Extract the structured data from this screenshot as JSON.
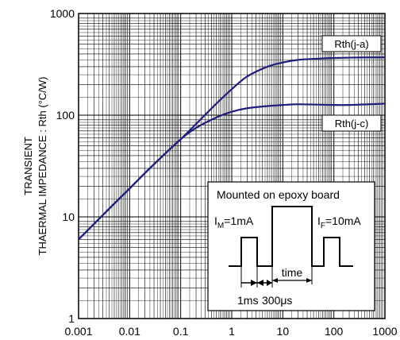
{
  "chart_data": {
    "type": "line",
    "xscale": "log",
    "yscale": "log",
    "xlim": [
      0.001,
      1000
    ],
    "ylim": [
      1,
      1000
    ],
    "grid": true,
    "ylabel_line1": "TRANSIENT",
    "ylabel_line2": "THAERMAL IMPEDANCE : Rth (°C/W)",
    "xticks": [
      "0.001",
      "0.01",
      "0.1",
      "1",
      "10",
      "100",
      "1000"
    ],
    "yticks": [
      "1",
      "10",
      "100",
      "1000"
    ],
    "series": [
      {
        "name": "Rth(j-a)",
        "x": [
          0.001,
          0.002,
          0.005,
          0.01,
          0.02,
          0.05,
          0.1,
          0.2,
          0.5,
          1,
          2,
          5,
          10,
          20,
          50,
          100,
          200,
          500,
          1000
        ],
        "y": [
          6,
          8.5,
          13.5,
          19,
          27,
          42,
          58,
          82,
          130,
          180,
          240,
          300,
          330,
          350,
          360,
          365,
          368,
          370,
          370
        ]
      },
      {
        "name": "Rth(j-c)",
        "x": [
          0.001,
          0.002,
          0.005,
          0.01,
          0.02,
          0.05,
          0.1,
          0.2,
          0.5,
          1,
          2,
          5,
          10,
          20,
          50,
          100,
          200,
          500,
          1000
        ],
        "y": [
          6,
          8.5,
          13.5,
          19,
          27,
          42,
          58,
          75,
          95,
          108,
          117,
          123,
          126,
          128,
          127,
          126,
          126,
          128,
          130
        ]
      }
    ],
    "inset": {
      "title": "Mounted on epoxy board",
      "im_label": "I",
      "im_sub": "M",
      "im_value": "=1mA",
      "if_label": "I",
      "if_sub": "F",
      "if_value": "=10mA",
      "time_label": "time",
      "dim1_label": "1ms",
      "dim2_label": "300μs"
    },
    "colors": {
      "curve": "#1f1f7a",
      "grid": "#000000",
      "axis": "#000000"
    }
  }
}
